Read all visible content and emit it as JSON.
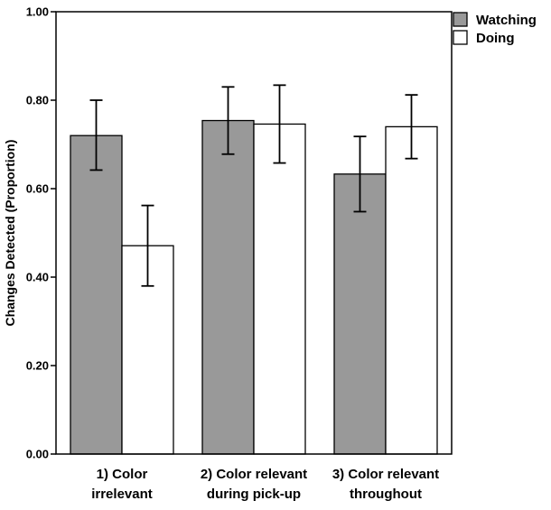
{
  "chart_data": {
    "type": "bar",
    "ylabel": "Changes Detected (Proportion)",
    "xlabel": "",
    "ylim": [
      0,
      1.0
    ],
    "yticks": [
      "0.00",
      "0.20",
      "0.40",
      "0.60",
      "0.80",
      "1.00"
    ],
    "categories": [
      [
        "1) Color",
        "irrelevant"
      ],
      [
        "2) Color relevant",
        "during pick-up"
      ],
      [
        "3) Color relevant",
        "throughout"
      ]
    ],
    "series": [
      {
        "name": "Watching",
        "color": "#999999",
        "values": [
          0.72,
          0.754,
          0.633
        ],
        "err_low": [
          0.642,
          0.678,
          0.548
        ],
        "err_high": [
          0.8,
          0.83,
          0.718
        ]
      },
      {
        "name": "Doing",
        "color": "#ffffff",
        "values": [
          0.471,
          0.746,
          0.74
        ],
        "err_low": [
          0.38,
          0.658,
          0.668
        ],
        "err_high": [
          0.562,
          0.834,
          0.812
        ]
      }
    ],
    "legend": "top-right",
    "grid": false
  }
}
